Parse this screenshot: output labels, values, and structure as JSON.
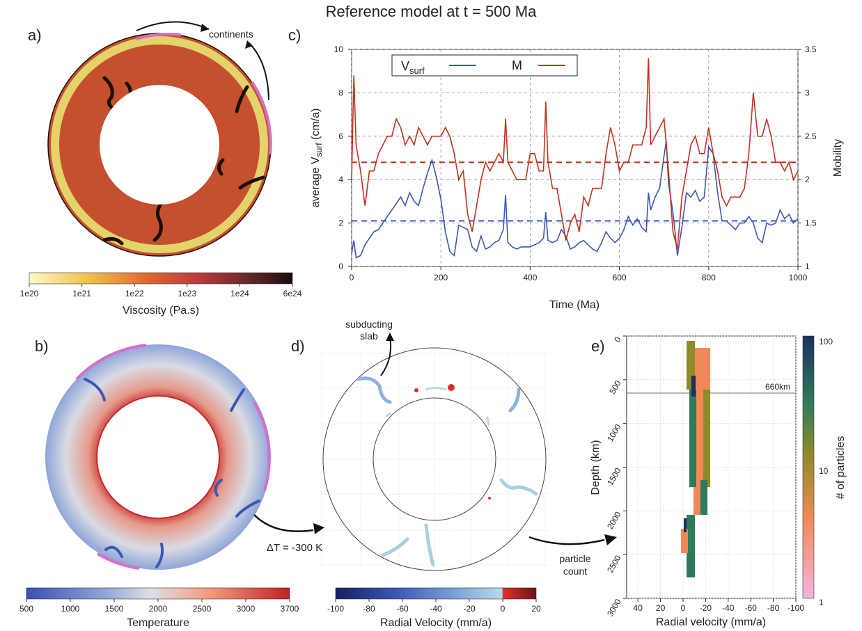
{
  "title": "Reference model at t = 500 Ma",
  "panel_a": {
    "letter": "a)",
    "annotation": "continents",
    "colorbar": {
      "label": "Viscosity (Pa.s)",
      "ticks": [
        "1e20",
        "1e21",
        "1e22",
        "1e23",
        "1e24",
        "6e24"
      ]
    }
  },
  "panel_b": {
    "letter": "b)",
    "colorbar": {
      "label": "Temperature",
      "ticks": [
        "500",
        "1000",
        "1500",
        "2000",
        "2500",
        "3000",
        "3700"
      ]
    }
  },
  "panel_c": {
    "letter": "c)",
    "xlabel": "Time (Ma)",
    "ylabel_main": "average V",
    "ylabel_sub": "surf",
    "ylabel_tail": " (cm/a)",
    "y2label": "Mobility",
    "legend": {
      "vsurf_main": "V",
      "vsurf_sub": "surf",
      "mobility": "M"
    },
    "xticks": [
      "0",
      "200",
      "400",
      "600",
      "800",
      "1000"
    ],
    "yticks": [
      "0",
      "2",
      "4",
      "6",
      "8",
      "10"
    ],
    "y2ticks": [
      "1",
      "1.5",
      "2",
      "2.5",
      "3",
      "3.5"
    ]
  },
  "panel_d": {
    "letter": "d)",
    "annotation_slab_line1": "subducting",
    "annotation_slab_line2": "slab",
    "annotation_dt": "ΔT = -300 K",
    "annotation_particle_line1": "particle",
    "annotation_particle_line2": "count",
    "colorbar": {
      "label": "Radial Velocity (mm/a)",
      "ticks": [
        "-100",
        "-80",
        "-60",
        "-40",
        "-20",
        "0",
        "20"
      ]
    }
  },
  "panel_e": {
    "letter": "e)",
    "xlabel": "Radial velocity (mm/a)",
    "ylabel": "Depth (km)",
    "colorbar_label": "# of particles",
    "xticks": [
      "40",
      "20",
      "0",
      "-20",
      "-40",
      "-60",
      "-80",
      "-100"
    ],
    "yticks": [
      "0",
      "500",
      "1000",
      "1500",
      "2000",
      "2500",
      "3000"
    ],
    "cbticks": [
      "100",
      "10",
      "1"
    ],
    "line_label": "660km"
  },
  "colors": {
    "vsurf": "#3b57b5",
    "mobility": "#c4301c",
    "continent": "#d66fc8"
  },
  "chart_data": {
    "type": "line",
    "x": [
      0,
      5,
      10,
      20,
      30,
      40,
      50,
      60,
      70,
      80,
      90,
      100,
      110,
      120,
      130,
      140,
      150,
      160,
      170,
      180,
      190,
      200,
      210,
      220,
      230,
      240,
      250,
      260,
      270,
      280,
      290,
      300,
      310,
      320,
      330,
      340,
      345,
      350,
      360,
      370,
      380,
      390,
      400,
      410,
      420,
      430,
      435,
      440,
      450,
      460,
      470,
      480,
      490,
      500,
      510,
      520,
      530,
      540,
      550,
      560,
      570,
      580,
      590,
      600,
      610,
      620,
      630,
      640,
      650,
      660,
      665,
      670,
      680,
      690,
      700,
      705,
      710,
      720,
      730,
      740,
      750,
      760,
      770,
      780,
      790,
      800,
      810,
      820,
      830,
      840,
      850,
      860,
      870,
      880,
      890,
      900,
      910,
      920,
      930,
      940,
      950,
      960,
      970,
      980,
      990,
      1000
    ],
    "series": [
      {
        "name": "Vsurf",
        "axis": "left",
        "values": [
          0.6,
          1.2,
          0.4,
          0.5,
          1.0,
          1.3,
          1.6,
          1.7,
          2.0,
          2.3,
          2.6,
          2.9,
          3.2,
          2.8,
          3.4,
          3.0,
          2.8,
          3.6,
          4.3,
          4.9,
          4.1,
          3.1,
          1.6,
          0.7,
          0.5,
          1.9,
          1.8,
          1.7,
          0.9,
          0.7,
          1.4,
          0.8,
          0.9,
          1.1,
          1.2,
          1.7,
          3.3,
          1.1,
          0.9,
          0.8,
          0.9,
          0.9,
          0.9,
          1.0,
          1.1,
          1.3,
          2.5,
          1.2,
          1.1,
          1.2,
          1.7,
          1.4,
          0.8,
          0.9,
          1.1,
          1.2,
          1.0,
          0.8,
          0.7,
          1.1,
          1.6,
          1.3,
          1.1,
          1.3,
          1.7,
          2.3,
          1.9,
          2.2,
          1.8,
          1.6,
          3.4,
          2.6,
          3.2,
          3.6,
          5.1,
          5.8,
          3.8,
          2.5,
          0.5,
          1.8,
          3.4,
          3.2,
          3.5,
          3.0,
          3.2,
          5.5,
          5.2,
          3.4,
          2.1,
          2.1,
          1.9,
          1.7,
          2.0,
          2.0,
          2.3,
          2.0,
          1.3,
          1.1,
          2.0,
          1.9,
          2.0,
          2.6,
          2.2,
          2.4,
          2.0,
          2.2
        ]
      },
      {
        "name": "M",
        "axis": "right",
        "values": [
          2.0,
          3.2,
          2.4,
          2.1,
          1.7,
          2.1,
          2.1,
          2.3,
          2.4,
          2.5,
          2.5,
          2.7,
          2.6,
          2.4,
          2.5,
          2.4,
          2.6,
          2.5,
          2.4,
          2.5,
          2.5,
          2.5,
          2.6,
          2.5,
          2.3,
          2.0,
          2.1,
          1.6,
          1.4,
          1.7,
          2.0,
          2.2,
          2.1,
          2.2,
          2.3,
          2.2,
          2.7,
          2.2,
          2.1,
          2.0,
          2.0,
          2.0,
          2.3,
          2.3,
          2.1,
          2.1,
          2.9,
          2.2,
          1.9,
          1.9,
          1.6,
          1.3,
          1.5,
          1.6,
          1.4,
          1.8,
          1.7,
          1.9,
          1.9,
          1.9,
          2.3,
          2.6,
          2.4,
          2.1,
          2.2,
          2.2,
          2.4,
          2.4,
          2.4,
          2.6,
          3.4,
          2.4,
          2.5,
          2.6,
          2.7,
          2.4,
          2.1,
          1.4,
          1.2,
          1.8,
          2.1,
          2.4,
          2.5,
          2.3,
          2.3,
          2.6,
          2.3,
          2.1,
          1.8,
          1.7,
          1.8,
          1.8,
          1.8,
          1.9,
          2.3,
          3.0,
          2.5,
          2.5,
          2.7,
          2.5,
          2.2,
          2.2,
          2.1,
          2.2,
          2.0,
          2.1
        ]
      }
    ],
    "reference_lines": {
      "vsurf_mean": 2.1,
      "mobility_mean": 2.2
    },
    "xlim": [
      0,
      1000
    ],
    "ylim": [
      0,
      10
    ],
    "y2lim": [
      1,
      3.5
    ],
    "grid": true,
    "legend_position": "top-left"
  }
}
